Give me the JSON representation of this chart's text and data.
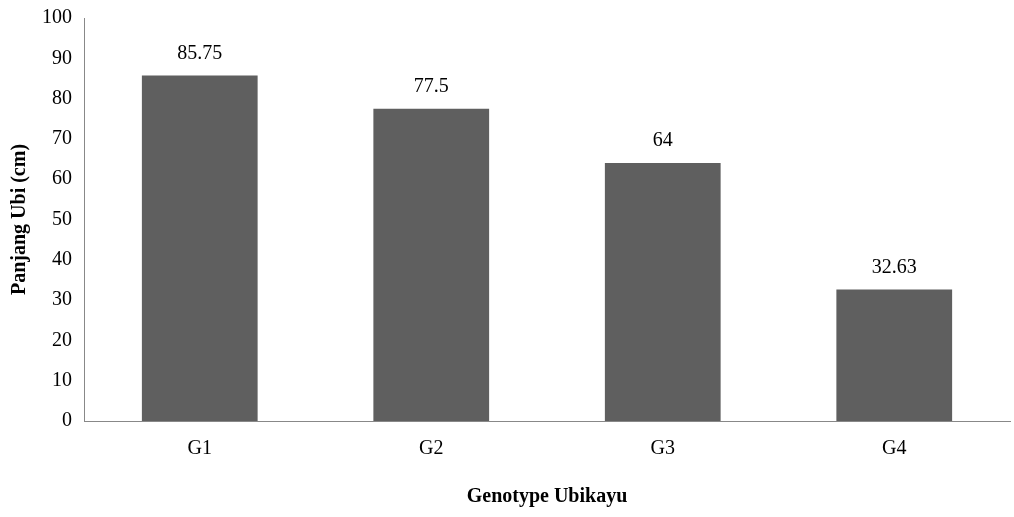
{
  "chart_data": {
    "type": "bar",
    "xlabel": "Genotype Ubikayu",
    "ylabel": "Panjang Ubi (cm)",
    "categories": [
      "G1",
      "G2",
      "G3",
      "G4"
    ],
    "values": [
      85.75,
      77.5,
      64,
      32.63
    ],
    "color": "#5f5f5f",
    "ylim": [
      0,
      100
    ],
    "yticks": [
      0,
      10,
      20,
      30,
      40,
      50,
      60,
      70,
      80,
      90,
      100
    ],
    "grid": false,
    "legend": false,
    "data_labels": true
  }
}
